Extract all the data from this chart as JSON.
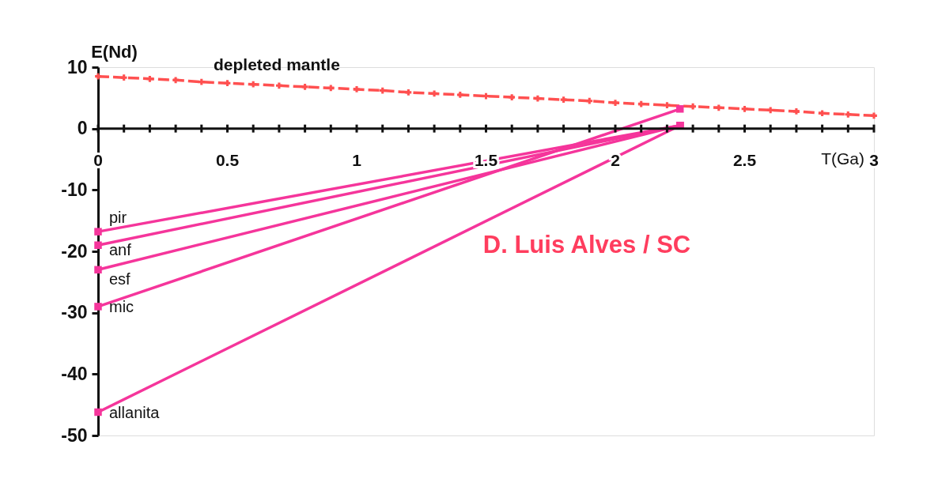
{
  "chart_data": {
    "type": "line",
    "xlabel": "T(Ga)",
    "ylabel": "E(Nd)",
    "xlim": [
      0,
      3
    ],
    "ylim": [
      -50,
      10
    ],
    "xticks": [
      0,
      {
        "value": 0.1,
        "label": null
      },
      {
        "value": 0.2,
        "label": null
      },
      {
        "value": 0.3,
        "label": null
      },
      {
        "value": 0.4,
        "label": null
      },
      0.5,
      {
        "value": 0.6,
        "label": null
      },
      {
        "value": 0.7,
        "label": null
      },
      {
        "value": 0.8,
        "label": null
      },
      {
        "value": 0.9,
        "label": null
      },
      1,
      {
        "value": 1.1,
        "label": null
      },
      {
        "value": 1.2,
        "label": null
      },
      {
        "value": 1.3,
        "label": null
      },
      {
        "value": 1.4,
        "label": null
      },
      1.5,
      {
        "value": 1.6,
        "label": null
      },
      {
        "value": 1.7,
        "label": null
      },
      {
        "value": 1.8,
        "label": null
      },
      {
        "value": 1.9,
        "label": null
      },
      2,
      {
        "value": 2.1,
        "label": null
      },
      {
        "value": 2.2,
        "label": null
      },
      {
        "value": 2.3,
        "label": null
      },
      {
        "value": 2.4,
        "label": null
      },
      2.5,
      {
        "value": 2.6,
        "label": null
      },
      {
        "value": 2.7,
        "label": null
      },
      {
        "value": 2.8,
        "label": null
      },
      {
        "value": 2.9,
        "label": null
      },
      3
    ],
    "yticks": [
      -50,
      -40,
      -30,
      -20,
      -10,
      0,
      10
    ],
    "grid": false,
    "annotations": [
      "D. Luis Alves / SC"
    ],
    "series": [
      {
        "name": "depleted mantle",
        "color": "#ff5050",
        "line_style": "dashed",
        "marker": "cross",
        "x": [
          0,
          0.1,
          0.2,
          0.3,
          0.4,
          0.5,
          0.6,
          0.7,
          0.8,
          0.9,
          1,
          1.1,
          1.2,
          1.3,
          1.4,
          1.5,
          1.6,
          1.7,
          1.8,
          1.9,
          2,
          2.1,
          2.2,
          2.3,
          2.4,
          2.5,
          2.6,
          2.7,
          2.8,
          2.9,
          3
        ],
        "values": [
          8.5,
          8.3,
          8.1,
          7.9,
          7.6,
          7.4,
          7.2,
          7.0,
          6.8,
          6.6,
          6.4,
          6.2,
          5.9,
          5.7,
          5.5,
          5.3,
          5.1,
          4.9,
          4.7,
          4.5,
          4.2,
          4.0,
          3.8,
          3.6,
          3.4,
          3.2,
          3.0,
          2.8,
          2.5,
          2.3,
          2.1
        ]
      },
      {
        "name": "pir",
        "color": "#f5359b",
        "line_style": "solid",
        "marker": "square",
        "x": [
          0,
          2.25
        ],
        "values": [
          -16.8,
          0.5
        ]
      },
      {
        "name": "anf",
        "color": "#f5359b",
        "line_style": "solid",
        "marker": "square",
        "x": [
          0,
          2.25
        ],
        "values": [
          -19,
          0.5
        ]
      },
      {
        "name": "esf",
        "color": "#f5359b",
        "line_style": "solid",
        "marker": "square",
        "x": [
          0,
          2.25
        ],
        "values": [
          -23,
          0.5
        ]
      },
      {
        "name": "mic",
        "color": "#f5359b",
        "line_style": "solid",
        "marker": "square",
        "x": [
          0,
          2.25
        ],
        "values": [
          -29,
          3.2
        ]
      },
      {
        "name": "allanita",
        "color": "#f5359b",
        "line_style": "solid",
        "marker": "square",
        "x": [
          0,
          2.25
        ],
        "values": [
          -46.2,
          0.5
        ]
      }
    ]
  }
}
